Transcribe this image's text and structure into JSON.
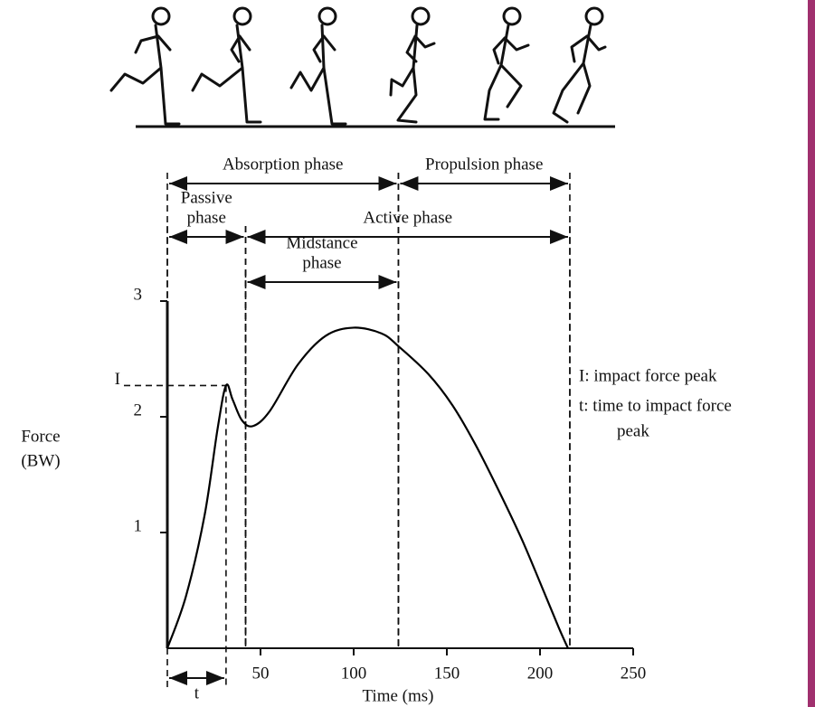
{
  "chart_data": {
    "type": "line",
    "x": [
      0,
      10,
      20,
      27,
      31.5,
      35,
      40,
      46,
      55,
      70,
      85,
      100,
      115,
      124,
      140,
      153,
      165,
      177,
      190,
      201,
      210,
      215
    ],
    "y": [
      0,
      0.45,
      1.15,
      1.9,
      2.27,
      2.15,
      1.97,
      1.92,
      2.05,
      2.45,
      2.7,
      2.77,
      2.72,
      2.61,
      2.37,
      2.1,
      1.77,
      1.39,
      0.95,
      0.53,
      0.18,
      0
    ],
    "color": "#000000",
    "xlim": [
      0,
      250
    ],
    "xticks": [
      50,
      100,
      150,
      200,
      250
    ],
    "ylim": [
      0,
      3
    ],
    "yticks": [
      1,
      2,
      3,
      {
        "value": 2.27,
        "label": "I"
      }
    ],
    "xlabel": "Time (ms)",
    "ylabel": [
      "Force",
      "(BW)"
    ],
    "phases": [
      {
        "label": [
          "Absorption phase"
        ],
        "start": 0,
        "end": 124
      },
      {
        "label": [
          "Propulsion phase"
        ],
        "start": 124,
        "end": 216
      },
      {
        "label": [
          "Passive",
          "phase"
        ],
        "start": 0,
        "end": 42
      },
      {
        "label": [
          "Active phase"
        ],
        "start": 42,
        "end": 216
      },
      {
        "label": [
          "Midstance",
          "phase"
        ],
        "start": 42,
        "end": 124
      }
    ],
    "impact_time": {
      "label": "t",
      "value": 31.5
    },
    "notes": [
      [
        "I:  impact force peak"
      ],
      [
        "t:  time to impact force",
        "peak"
      ]
    ]
  }
}
